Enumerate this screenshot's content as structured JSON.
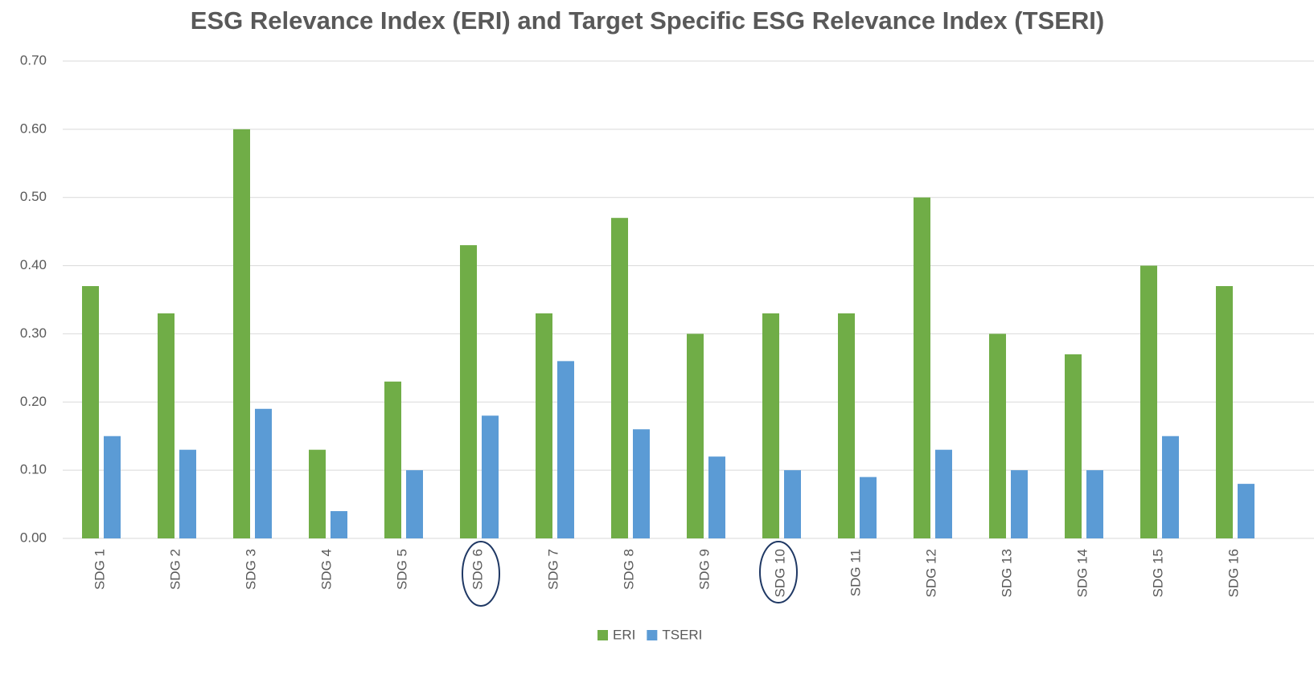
{
  "chart_data": {
    "type": "bar",
    "title": "ESG Relevance Index (ERI) and Target Specific ESG Relevance Index (TSERI)",
    "categories": [
      "SDG 1",
      "SDG 2",
      "SDG 3",
      "SDG 4",
      "SDG 5",
      "SDG 6",
      "SDG 7",
      "SDG 8",
      "SDG 9",
      "SDG 10",
      "SDG 11",
      "SDG 12",
      "SDG 13",
      "SDG 14",
      "SDG 15",
      "SDG 16"
    ],
    "series": [
      {
        "name": "ERI",
        "color": "#70ad47",
        "values": [
          0.37,
          0.33,
          0.6,
          0.13,
          0.23,
          0.43,
          0.33,
          0.47,
          0.3,
          0.33,
          0.33,
          0.5,
          0.3,
          0.27,
          0.4,
          0.37
        ]
      },
      {
        "name": "TSERI",
        "color": "#5b9bd5",
        "values": [
          0.15,
          0.13,
          0.19,
          0.04,
          0.1,
          0.18,
          0.26,
          0.16,
          0.12,
          0.1,
          0.09,
          0.13,
          0.1,
          0.1,
          0.15,
          0.08
        ]
      }
    ],
    "ylim": [
      0,
      0.7
    ],
    "yticks": [
      {
        "value": 0,
        "label": "0.00"
      },
      {
        "value": 0.1,
        "label": "0.10"
      },
      {
        "value": 0.2,
        "label": "0.20"
      },
      {
        "value": 0.3,
        "label": "0.30"
      },
      {
        "value": 0.4,
        "label": "0.40"
      },
      {
        "value": 0.5,
        "label": "0.50"
      },
      {
        "value": 0.6,
        "label": "0.60"
      },
      {
        "value": 0.7,
        "label": "0.70"
      }
    ],
    "grid": true,
    "legend": "bottom"
  }
}
